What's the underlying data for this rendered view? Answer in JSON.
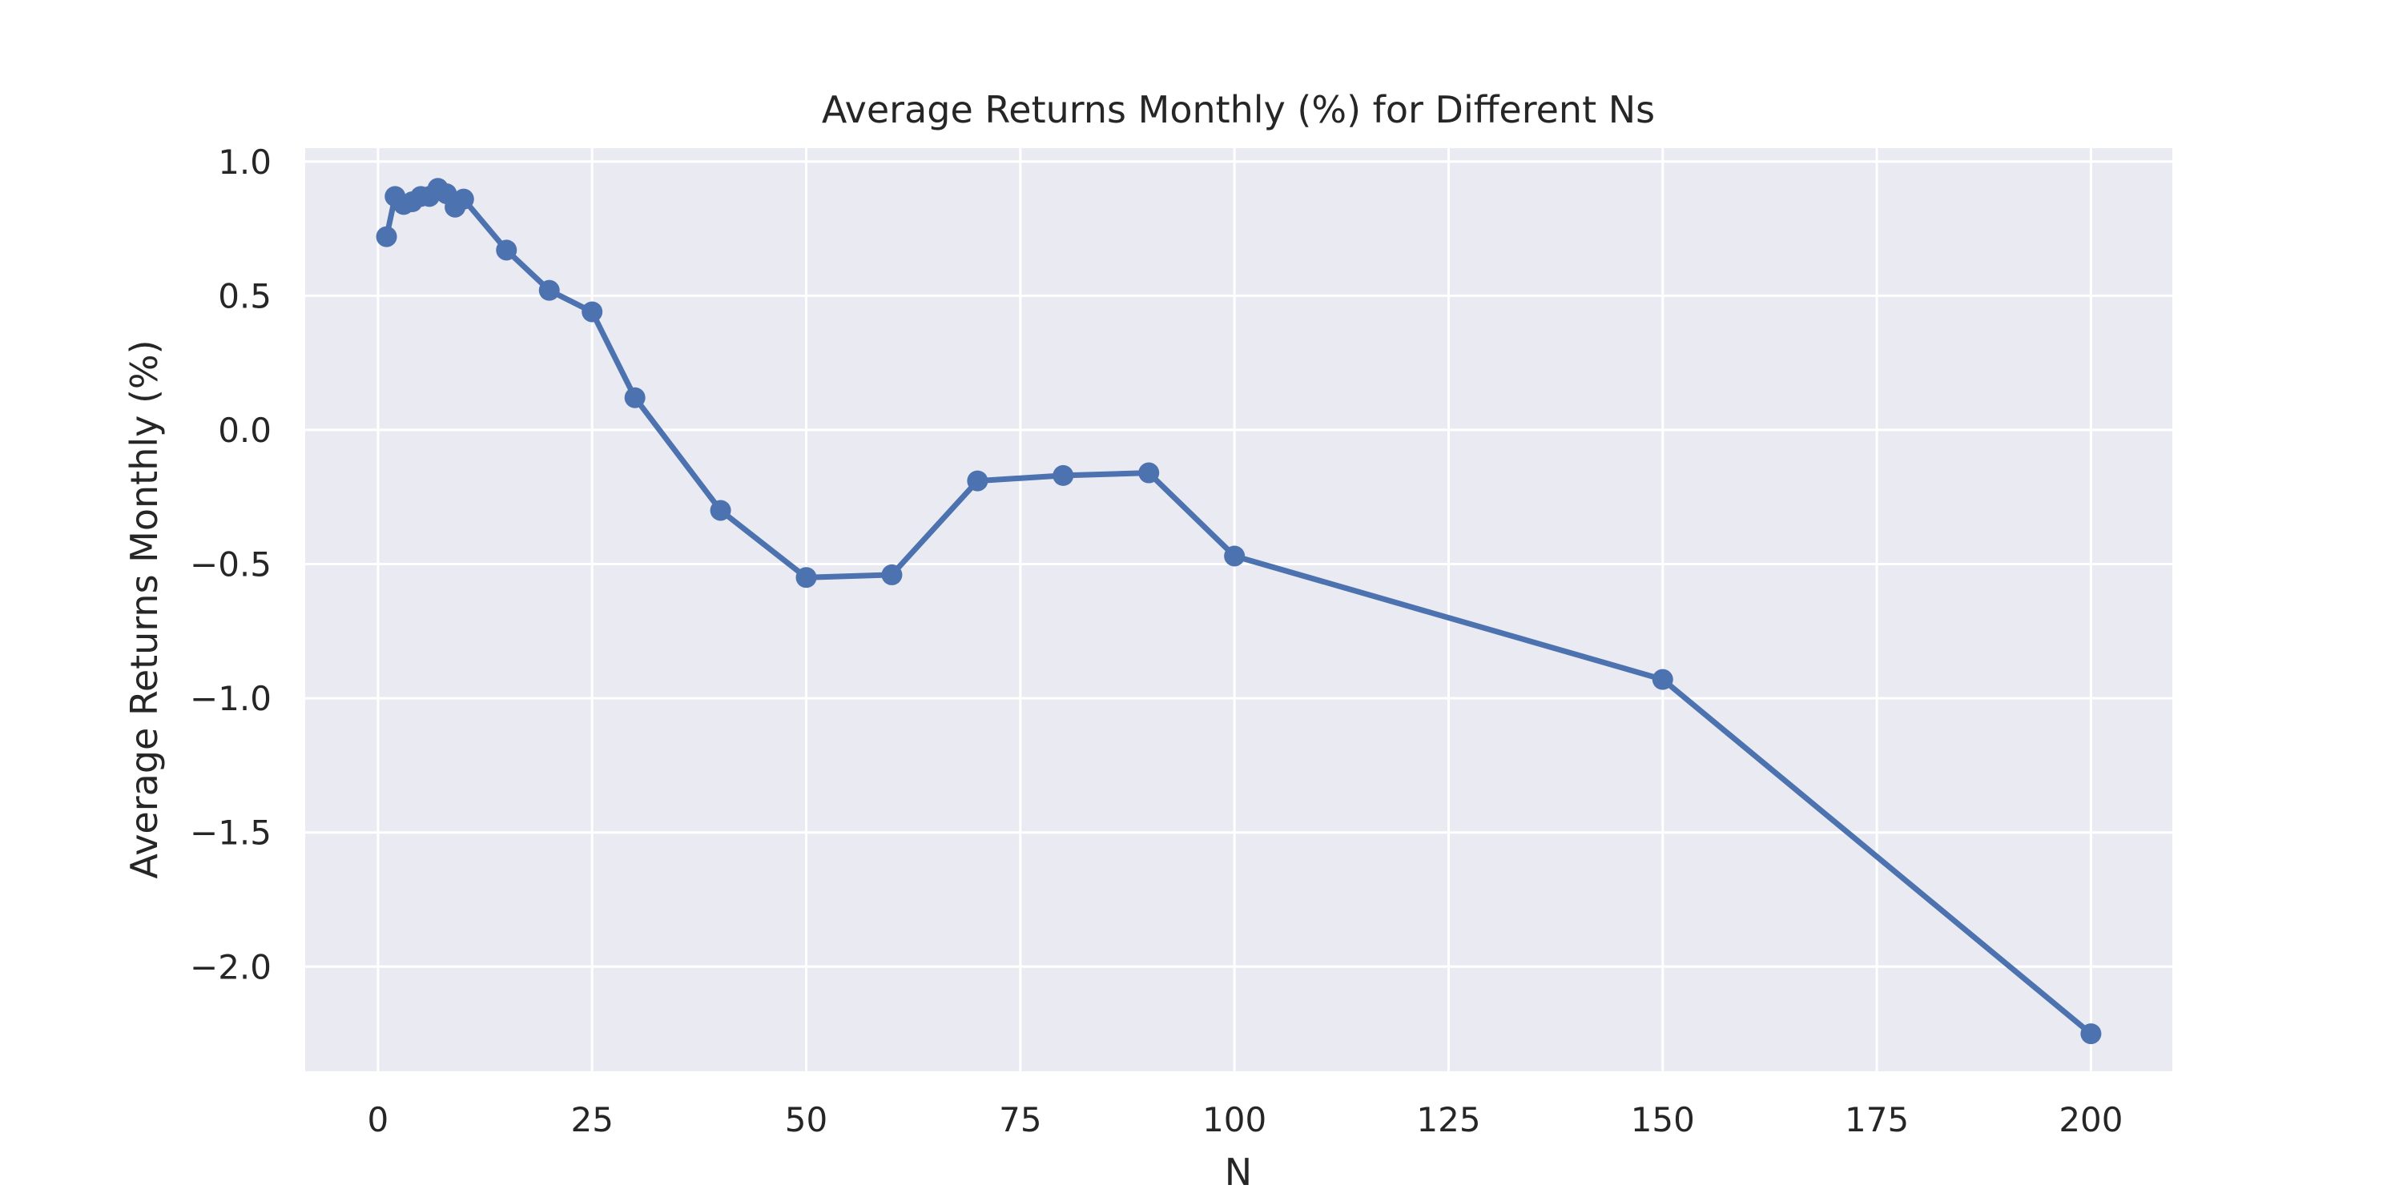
{
  "chart_data": {
    "type": "line",
    "title": "Average Returns Monthly (%) for Different Ns",
    "xlabel": "N",
    "ylabel": "Average Returns Monthly (%)",
    "xlim": [
      -8.5,
      209.5
    ],
    "ylim": [
      -2.39,
      1.05
    ],
    "xticks": [
      0,
      25,
      50,
      75,
      100,
      125,
      150,
      175,
      200
    ],
    "xtick_labels": [
      "0",
      "25",
      "50",
      "75",
      "100",
      "125",
      "150",
      "175",
      "200"
    ],
    "yticks": [
      1.0,
      0.5,
      0.0,
      -0.5,
      -1.0,
      -1.5,
      -2.0
    ],
    "ytick_labels": [
      "1.0",
      "0.5",
      "0.0",
      "−0.5",
      "−1.0",
      "−1.5",
      "−2.0"
    ],
    "grid": true,
    "legend": false,
    "series": [
      {
        "color": "#4c72b0",
        "marker": "circle",
        "x": [
          1,
          2,
          3,
          4,
          5,
          6,
          7,
          8,
          9,
          10,
          15,
          20,
          25,
          30,
          40,
          50,
          60,
          70,
          80,
          90,
          100,
          150,
          200
        ],
        "y": [
          0.72,
          0.87,
          0.84,
          0.85,
          0.87,
          0.87,
          0.9,
          0.88,
          0.83,
          0.86,
          0.67,
          0.52,
          0.44,
          0.12,
          -0.3,
          -0.55,
          -0.54,
          -0.19,
          -0.17,
          -0.16,
          -0.47,
          -0.93,
          -2.25
        ]
      }
    ],
    "colors": {
      "plot_background": "#eaeaf2",
      "grid": "#ffffff",
      "line": "#4c72b0",
      "text": "#262626"
    }
  }
}
